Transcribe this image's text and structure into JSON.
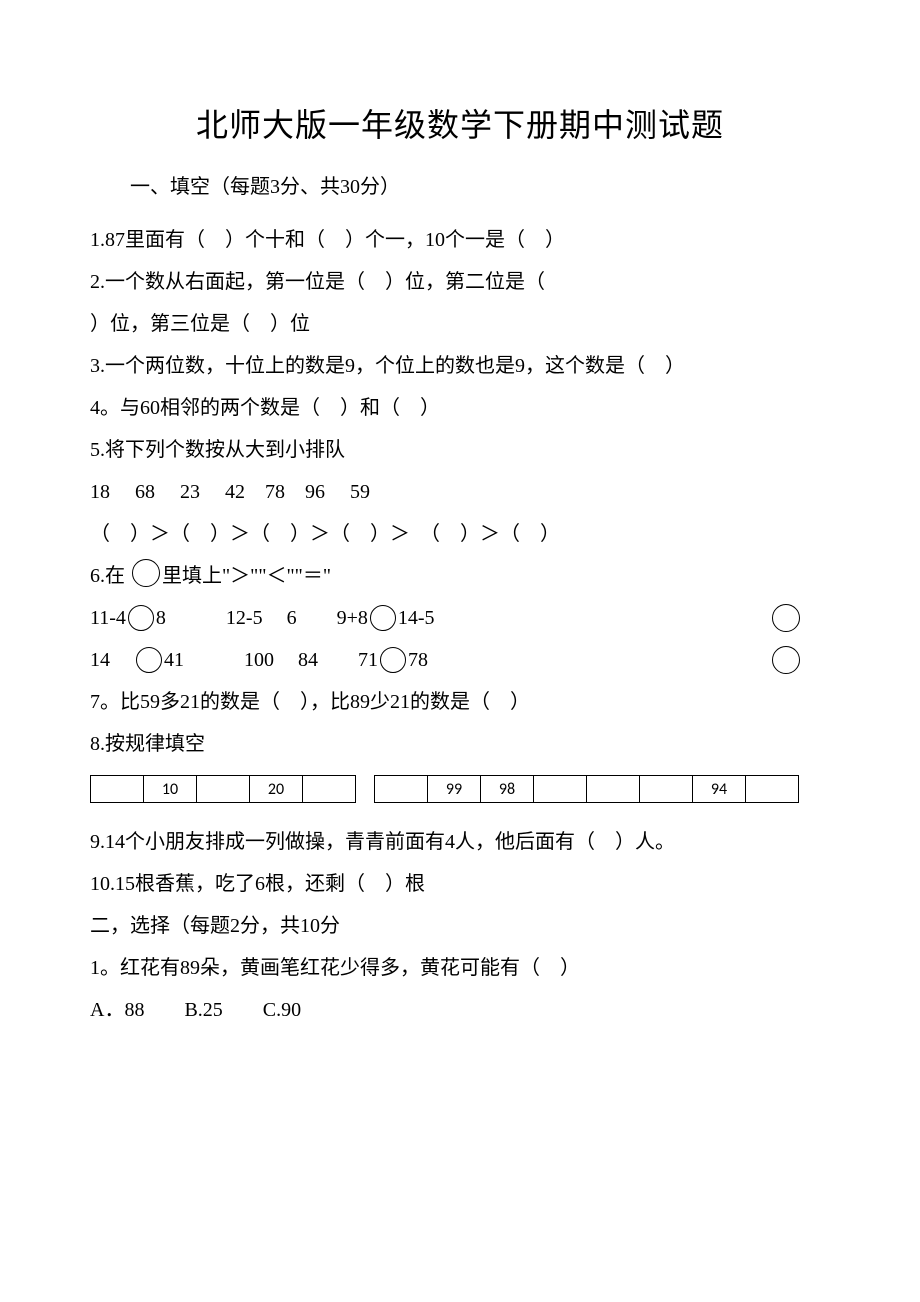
{
  "title": "北师大版一年级数学下册期中测试题",
  "section1_head": "一、填空（每题3分、共30分）",
  "q1": "1.87里面有（　）个十和（　）个一，10个一是（　）",
  "q2a": "2.一个数从右面起，第一位是（　）位，第二位是（",
  "q2b": "）位，第三位是（　）位",
  "q3": "3.一个两位数，十位上的数是9，个位上的数也是9，这个数是（　）",
  "q4": "4。与60相邻的两个数是（　）和（　）",
  "q5a": "5.将下列个数按从大到小排队",
  "q5b": "18　 68　 23　 42　78　96　 59",
  "q5c": "（　）＞（　）＞（　）＞（　）＞　（　）＞（　）",
  "q6a_pre": "6.在 ",
  "q6a_post": "里填上\"＞\"\"＜\"\"＝\"",
  "q6_row1": {
    "a_left": "11-4",
    "a_right": "8",
    "b_left": "12-5",
    "b_right": "6",
    "c_left": "9+8",
    "c_right": "14-5"
  },
  "q6_row2": {
    "a_left": "14",
    "a_right": "41",
    "b_left": "100",
    "b_right": "84",
    "c_left": "71",
    "c_right": "78"
  },
  "q7": "7。比59多21的数是（　），比89少21的数是（　）",
  "q8": "8.按规律填空",
  "seq1": {
    "widths": [
      52,
      52,
      52,
      52,
      52
    ],
    "cells": [
      "",
      "10",
      "",
      "20",
      ""
    ]
  },
  "seq2": {
    "widths": [
      52,
      52,
      52,
      52,
      52,
      52,
      52,
      52
    ],
    "cells": [
      "",
      "99",
      "98",
      "",
      "",
      "",
      "94",
      ""
    ]
  },
  "q9": "9.14个小朋友排成一列做操，青青前面有4人，他后面有（　）人。",
  "q10": "10.15根香蕉，吃了6根，还剩（　）根",
  "section2_head": "二，选择（每题2分，共10分",
  "s2_q1": "1。红花有89朵，黄画笔红花少得多，黄花可能有（　）",
  "s2_q1_opts": "A．88　　B.25　　C.90",
  "colors": {
    "text": "#000000",
    "bg": "#ffffff",
    "border": "#000000"
  }
}
